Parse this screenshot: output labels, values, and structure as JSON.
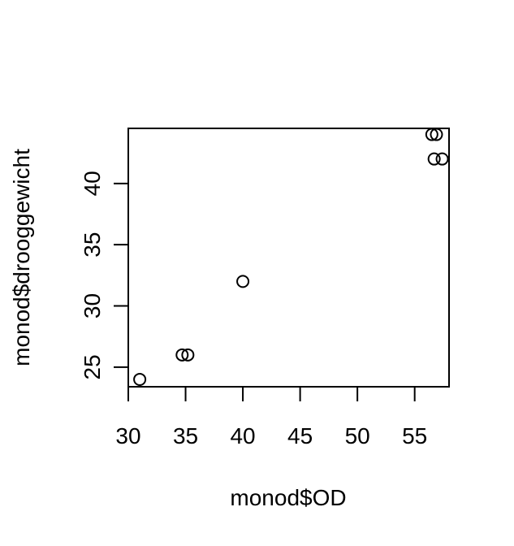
{
  "chart_data": {
    "type": "scatter",
    "title": "",
    "xlabel": "monod$OD",
    "ylabel": "monod$drooggewicht",
    "xlim": [
      30,
      58
    ],
    "ylim": [
      23.4,
      44.5
    ],
    "x_ticks": [
      30,
      35,
      40,
      45,
      50,
      55
    ],
    "y_ticks": [
      25,
      30,
      35,
      40
    ],
    "x_tick_labels": [
      "30",
      "35",
      "40",
      "45",
      "50",
      "55"
    ],
    "y_tick_labels": [
      "25",
      "30",
      "35",
      "40"
    ],
    "grid": false,
    "marker": "open-circle",
    "x": [
      31.0,
      34.7,
      35.2,
      40.0,
      56.5,
      56.9,
      56.7,
      57.4
    ],
    "y": [
      24.0,
      26.0,
      26.0,
      32.0,
      44.0,
      44.0,
      42.0,
      42.0
    ]
  }
}
